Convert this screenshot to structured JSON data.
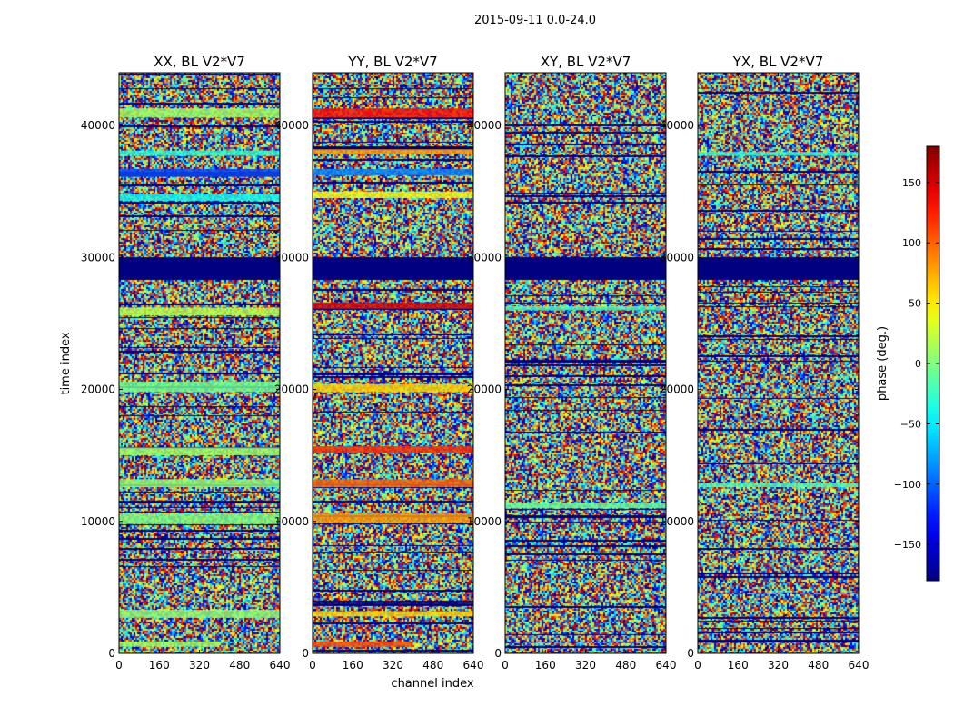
{
  "chart_data": {
    "type": "heatmap",
    "suptitle": "2015-09-11 0.0-24.0",
    "xlabel": "channel index",
    "ylabel": "time index",
    "xlim": [
      0,
      640
    ],
    "ylim": [
      0,
      44000
    ],
    "xticks": [
      0,
      160,
      320,
      480,
      640
    ],
    "yticks": [
      0,
      10000,
      20000,
      30000,
      40000
    ],
    "colormap": "jet",
    "colorbar": {
      "label": "phase (deg.)",
      "range": [
        -180,
        180
      ],
      "ticks": [
        -150,
        -100,
        -50,
        0,
        50,
        100,
        150
      ],
      "tick_labels": [
        "−150",
        "−100",
        "−50",
        "0",
        "50",
        "100",
        "150"
      ]
    },
    "panels": [
      {
        "title": "XX, BL V2*V7",
        "bands": [
          {
            "t0": 500,
            "t1": 900,
            "phase": 10,
            "ch1": 400
          },
          {
            "t0": 2700,
            "t1": 3300,
            "phase": 5
          },
          {
            "t0": 9800,
            "t1": 10600,
            "phase": 0
          },
          {
            "t0": 12600,
            "t1": 13200,
            "phase": 5
          },
          {
            "t0": 15000,
            "t1": 15600,
            "phase": 10
          },
          {
            "t0": 19800,
            "t1": 20600,
            "phase": -5
          },
          {
            "t0": 25600,
            "t1": 26200,
            "phase": 20
          },
          {
            "t0": 34300,
            "t1": 34800,
            "phase": -40
          },
          {
            "t0": 36100,
            "t1": 36700,
            "phase": -110
          },
          {
            "t0": 37700,
            "t1": 38100,
            "phase": -30
          },
          {
            "t0": 40600,
            "t1": 41300,
            "phase": 10
          }
        ]
      },
      {
        "title": "YY, BL V2*V7",
        "bands": [
          {
            "t0": 500,
            "t1": 900,
            "phase": 110,
            "ch1": 400
          },
          {
            "t0": 2800,
            "t1": 3200,
            "phase": 60
          },
          {
            "t0": 9900,
            "t1": 10600,
            "phase": 80
          },
          {
            "t0": 12600,
            "t1": 13200,
            "phase": 100
          },
          {
            "t0": 15200,
            "t1": 15700,
            "phase": 120
          },
          {
            "t0": 19800,
            "t1": 20400,
            "phase": 60
          },
          {
            "t0": 26100,
            "t1": 26600,
            "phase": 150
          },
          {
            "t0": 34500,
            "t1": 35000,
            "phase": 40
          },
          {
            "t0": 36200,
            "t1": 36700,
            "phase": -90
          },
          {
            "t0": 37800,
            "t1": 38200,
            "phase": 80
          },
          {
            "t0": 40600,
            "t1": 41300,
            "phase": 130
          }
        ]
      },
      {
        "title": "XY, BL V2*V7",
        "bands": [
          {
            "t0": 11000,
            "t1": 11400,
            "phase": -10
          },
          {
            "t0": 26000,
            "t1": 26300,
            "phase": -20
          }
        ]
      },
      {
        "title": "YX, BL V2*V7",
        "bands": [
          {
            "t0": 12600,
            "t1": 12900,
            "phase": -20
          },
          {
            "t0": 37700,
            "t1": 38000,
            "phase": -30
          }
        ]
      }
    ],
    "gap_rows_common": [
      28400,
      28600,
      28800,
      29000,
      29200,
      29400,
      29600,
      29800
    ]
  }
}
